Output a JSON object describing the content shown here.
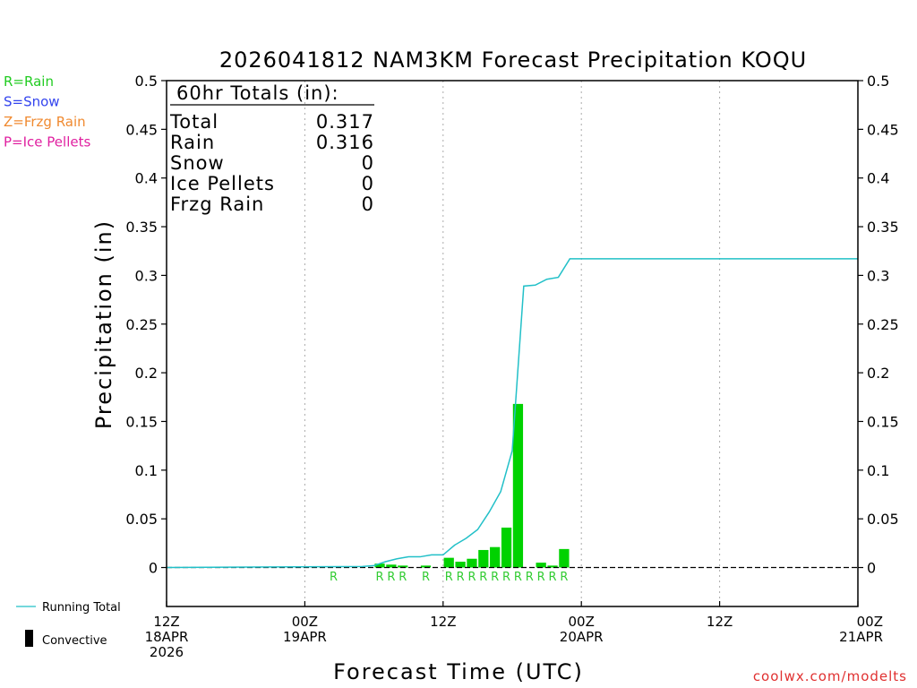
{
  "chart_data": {
    "type": "bar",
    "title": "2026041812 NAM3KM Forecast Precipitation KOQU",
    "xlabel": "Forecast Time (UTC)",
    "ylabel": "Precipitation (in)",
    "ylim": [
      -0.04,
      0.5
    ],
    "xlim_hours": [
      0,
      60
    ],
    "y_ticks": [
      0,
      0.05,
      0.1,
      0.15,
      0.2,
      0.25,
      0.3,
      0.35,
      0.4,
      0.45,
      0.5
    ],
    "y_tick_labels": [
      "0",
      "0.05",
      "0.1",
      "0.15",
      "0.2",
      "0.25",
      "0.3",
      "0.35",
      "0.4",
      "0.45",
      "0.5"
    ],
    "x_ticks": [
      {
        "hour": 0,
        "lines": [
          "12Z",
          "18APR",
          "2026"
        ]
      },
      {
        "hour": 12,
        "lines": [
          "00Z",
          "19APR"
        ]
      },
      {
        "hour": 24,
        "lines": [
          "12Z"
        ]
      },
      {
        "hour": 36,
        "lines": [
          "00Z",
          "20APR"
        ]
      },
      {
        "hour": 48,
        "lines": [
          "12Z"
        ]
      },
      {
        "hour": 60,
        "lines": [
          "00Z",
          "21APR"
        ]
      }
    ],
    "hourly_precip": {
      "name": "Hourly Precipitation",
      "color": "#00d200",
      "hours": [
        19,
        20,
        21,
        22,
        23,
        24,
        25,
        26,
        27,
        28,
        29,
        30,
        31,
        32,
        33,
        34,
        35,
        36
      ],
      "values": [
        0.004,
        0.003,
        0.002,
        0.0,
        0.002,
        0.0,
        0.01,
        0.006,
        0.009,
        0.018,
        0.021,
        0.041,
        0.168,
        0.0,
        0.005,
        0.002,
        0.019,
        0.0
      ]
    },
    "running_total": {
      "name": "Running Total",
      "color": "#22c0c8",
      "hours": [
        0,
        17,
        18,
        19,
        20,
        21,
        22,
        23,
        24,
        25,
        26,
        27,
        28,
        29,
        30,
        31,
        32,
        33,
        34,
        35,
        60
      ],
      "values": [
        0,
        0.001,
        0.002,
        0.006,
        0.009,
        0.011,
        0.011,
        0.013,
        0.013,
        0.023,
        0.03,
        0.039,
        0.057,
        0.078,
        0.12,
        0.289,
        0.29,
        0.296,
        0.298,
        0.317,
        0.317
      ]
    },
    "ptype_markers": {
      "hours": [
        15,
        19,
        20,
        21,
        23,
        25,
        26,
        27,
        28,
        29,
        30,
        31,
        32,
        33,
        34,
        35
      ],
      "label": "R",
      "color": "#33cc33"
    }
  },
  "type_legend": [
    {
      "text": "R=Rain",
      "color": "#22cc22"
    },
    {
      "text": "S=Snow",
      "color": "#3344ee"
    },
    {
      "text": "Z=Frzg Rain",
      "color": "#f08a30"
    },
    {
      "text": "P=Ice Pellets",
      "color": "#e020a0"
    }
  ],
  "totals_box": {
    "heading": "60hr Totals (in):",
    "rows": [
      {
        "label": "Total",
        "value": "0.317"
      },
      {
        "label": "Rain",
        "value": "0.316"
      },
      {
        "label": "Snow",
        "value": "0"
      },
      {
        "label": "Ice Pellets",
        "value": "0"
      },
      {
        "label": "Frzg Rain",
        "value": "0"
      }
    ]
  },
  "bottom_legend": {
    "running_total_label": "Running Total",
    "convective_label": "Convective",
    "running_total_color": "#22c0c8",
    "convective_color": "#000000"
  },
  "credit": {
    "text": "coolwx.com/modelts",
    "color": "#e03030"
  }
}
